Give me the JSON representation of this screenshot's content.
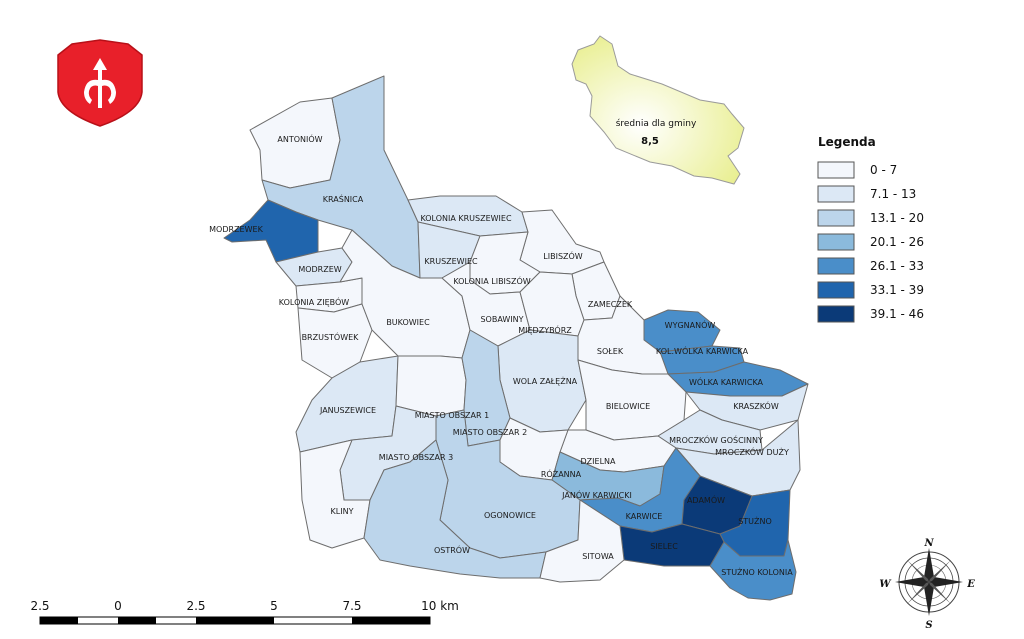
{
  "legend": {
    "title": "Legenda",
    "classes": [
      {
        "label": "0 - 7",
        "color": "#f4f7fc"
      },
      {
        "label": "7.1 - 13",
        "color": "#dce8f5"
      },
      {
        "label": "13.1 - 20",
        "color": "#bcd5eb"
      },
      {
        "label": "20.1 - 26",
        "color": "#8bbadc"
      },
      {
        "label": "26.1 - 33",
        "color": "#4a8ec9"
      },
      {
        "label": "33.1 - 39",
        "color": "#2065ad"
      },
      {
        "label": "39.1 - 46",
        "color": "#0b3a78"
      }
    ]
  },
  "inset": {
    "caption": "średnia dla gminy",
    "value": "8,5",
    "fill": "#eef2a6"
  },
  "regions": [
    {
      "name": "ANTONIÓW",
      "class": 0
    },
    {
      "name": "KRAŚNICA",
      "class": 2
    },
    {
      "name": "MODRZEWEK",
      "class": 5
    },
    {
      "name": "MODRZEW",
      "class": 1
    },
    {
      "name": "KOLONIA ZIĘBÓW",
      "class": 0
    },
    {
      "name": "BRZUSTÓWEK",
      "class": 0
    },
    {
      "name": "BUKOWIEC",
      "class": 0
    },
    {
      "name": "KOLONIA KRUSZEWIEC",
      "class": 1
    },
    {
      "name": "KRUSZEWIEC",
      "class": 1
    },
    {
      "name": "LIBISZÓW",
      "class": 0
    },
    {
      "name": "KOLONIA LIBISZÓW",
      "class": 0
    },
    {
      "name": "SOBAWINY",
      "class": 0
    },
    {
      "name": "ZAMECZEK",
      "class": 0
    },
    {
      "name": "MIĘDZYBÓRZ",
      "class": 0
    },
    {
      "name": "WYGNANÓW",
      "class": 4
    },
    {
      "name": "KOL.WÓLKA KARWICKA",
      "class": 4
    },
    {
      "name": "SOŁEK",
      "class": 0
    },
    {
      "name": "WÓLKA KARWICKA",
      "class": 4
    },
    {
      "name": "WOLA ZAŁĘŻNA",
      "class": 1
    },
    {
      "name": "JANUSZEWICE",
      "class": 1
    },
    {
      "name": "MIASTO OBSZAR 1",
      "class": 0
    },
    {
      "name": "MIASTO OBSZAR 2",
      "class": 2
    },
    {
      "name": "MIASTO OBSZAR 3",
      "class": 1
    },
    {
      "name": "BIELOWICE",
      "class": 0
    },
    {
      "name": "KRASZKÓW",
      "class": 1
    },
    {
      "name": "MROCZKÓW GOŚCINNY",
      "class": 1
    },
    {
      "name": "MROCZKÓW DUŻY",
      "class": 1
    },
    {
      "name": "DZIELNA",
      "class": 0
    },
    {
      "name": "RÓŻANNA",
      "class": 0
    },
    {
      "name": "JANÓW KARWICKI",
      "class": 3
    },
    {
      "name": "KLINY",
      "class": 0
    },
    {
      "name": "OGONOWICE",
      "class": 2
    },
    {
      "name": "KARWICE",
      "class": 4
    },
    {
      "name": "ADAMÓW",
      "class": 6
    },
    {
      "name": "STUŻNO",
      "class": 5
    },
    {
      "name": "SIELEC",
      "class": 6
    },
    {
      "name": "OSTRÓW",
      "class": 2
    },
    {
      "name": "SITOWA",
      "class": 0
    },
    {
      "name": "STUŻNO KOLONIA",
      "class": 4
    }
  ],
  "scale_bar": {
    "ticks": [
      "2.5",
      "0",
      "2.5",
      "5",
      "7.5",
      "10 km"
    ]
  },
  "compass": {
    "n": "N",
    "s": "S",
    "e": "E",
    "w": "W"
  },
  "emblem": {
    "fill": "#e8202a"
  }
}
